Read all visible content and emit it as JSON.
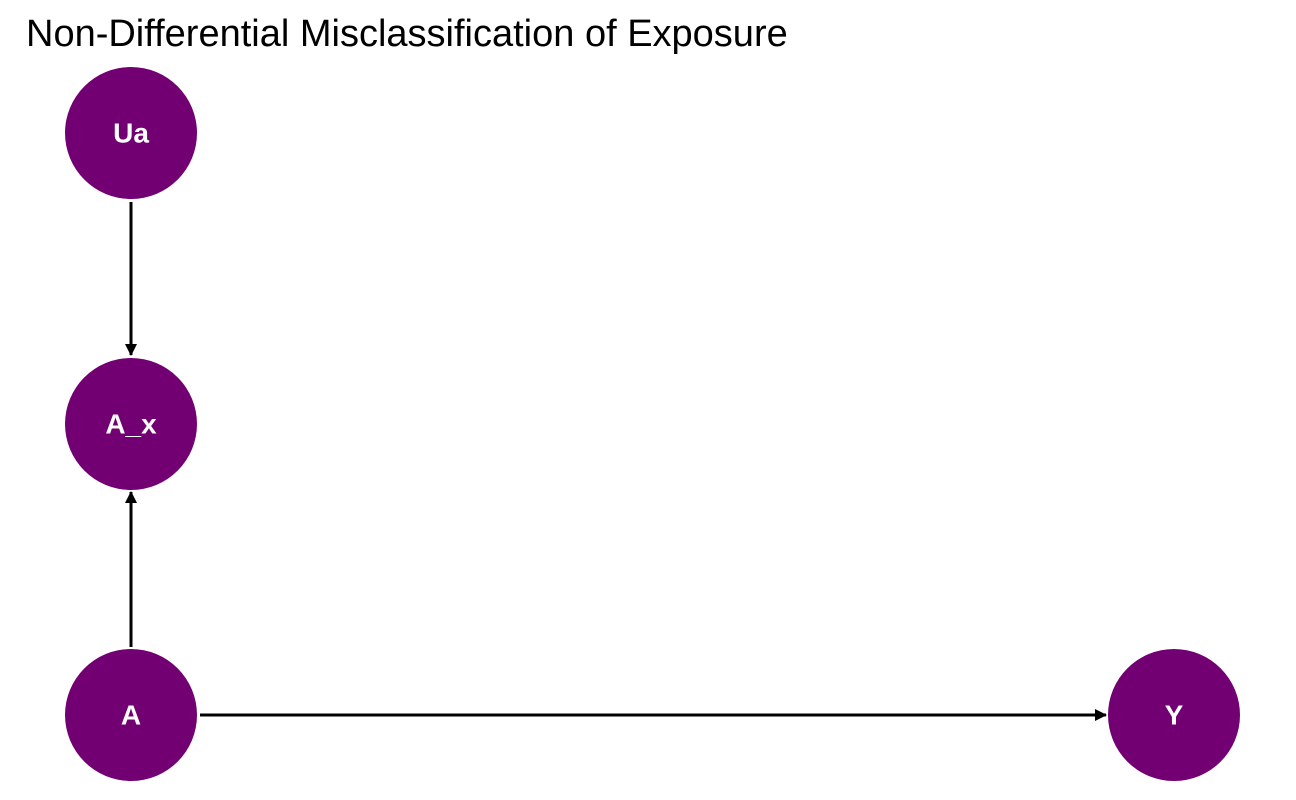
{
  "title": "Non-Differential Misclassification of Exposure",
  "colors": {
    "node_fill": "#730073",
    "node_text": "#ffffff",
    "edge": "#000000",
    "background": "#ffffff"
  },
  "nodes": {
    "ua": "Ua",
    "a_x": "A_x",
    "a": "A",
    "y": "Y"
  },
  "edges": [
    {
      "from": "Ua",
      "to": "A_x"
    },
    {
      "from": "A",
      "to": "A_x"
    },
    {
      "from": "A",
      "to": "Y"
    }
  ]
}
